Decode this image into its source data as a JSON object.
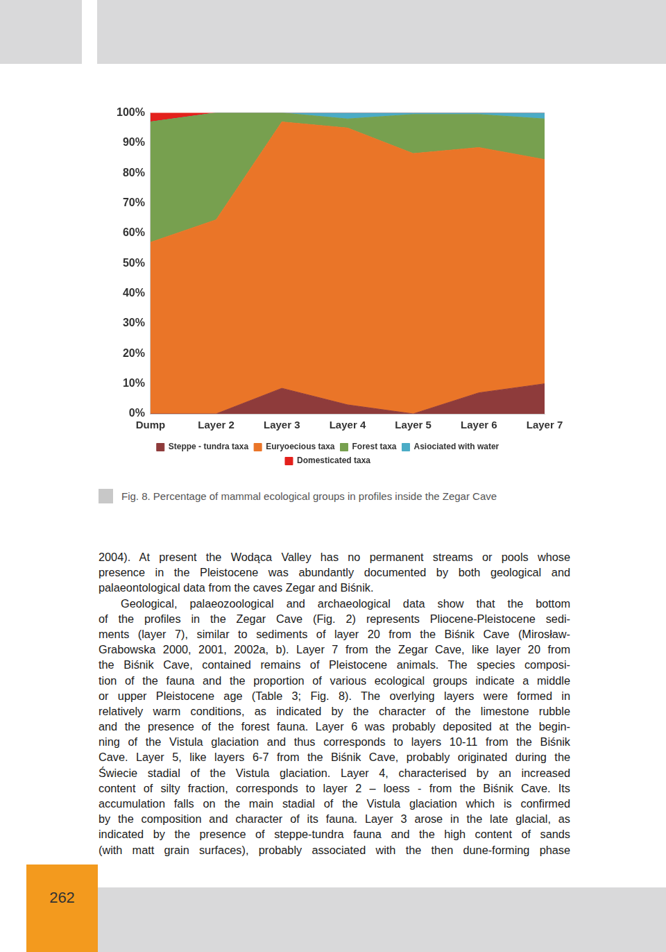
{
  "chart_data": {
    "type": "area",
    "stacked": true,
    "categories": [
      "Dump",
      "Layer 2",
      "Layer 3",
      "Layer 4",
      "Layer 5",
      "Layer 6",
      "Layer 7"
    ],
    "series": [
      {
        "name": "Steppe - tundra taxa",
        "color": "#8e3b3b",
        "values": [
          0,
          0,
          8.5,
          3,
          0,
          7,
          10
        ]
      },
      {
        "name": "Euryoecious taxa",
        "color": "#ea7528",
        "values": [
          57,
          64.5,
          88.5,
          92,
          86.5,
          81.5,
          74.5
        ]
      },
      {
        "name": "Forest taxa",
        "color": "#77a04f",
        "values": [
          40,
          35.5,
          3,
          3,
          13,
          11,
          13.5
        ]
      },
      {
        "name": "Asiociated with water",
        "color": "#4bacc6",
        "values": [
          0,
          0,
          0,
          2,
          0.5,
          0.5,
          2
        ]
      },
      {
        "name": "Domesticated taxa",
        "color": "#e3211c",
        "values": [
          3,
          0,
          0,
          0,
          0,
          0,
          0
        ]
      }
    ],
    "ylim": [
      0,
      100
    ],
    "yticks": [
      {
        "value": 0,
        "label": "0%"
      },
      {
        "value": 10,
        "label": "10%"
      },
      {
        "value": 20,
        "label": "20%"
      },
      {
        "value": 30,
        "label": "30%"
      },
      {
        "value": 40,
        "label": "40%"
      },
      {
        "value": 50,
        "label": "50%"
      },
      {
        "value": 60,
        "label": "60%"
      },
      {
        "value": 70,
        "label": "70%"
      },
      {
        "value": 80,
        "label": "80%"
      },
      {
        "value": 90,
        "label": "90%"
      },
      {
        "value": 100,
        "label": "100%"
      }
    ],
    "grid": false,
    "legend": "bottom"
  },
  "page": {
    "caption": "Fig. 8. Percentage of mammal ecological groups in profiles inside the Zegar Cave",
    "paragraphs": [
      [
        "2004). At present the Wodąca Valley has no permanent streams or pools whose",
        "presence in the Pleistocene was abundantly documented by both geological and",
        "palaeontological data from the caves Zegar and Biśnik."
      ],
      [
        "Geological, palaeozoological and archaeological data show that the bottom",
        "of the profiles in the Zegar Cave (Fig. 2) represents Pliocene-Pleistocene sedi-",
        "ments (layer 7), similar to sediments of layer 20 from the Biśnik Cave (Mirosław-",
        "Grabowska 2000, 2001, 2002a, b). Layer 7 from the Zegar Cave, like layer 20 from",
        "the Biśnik Cave, contained remains of Pleistocene animals. The species composi-",
        "tion of the fauna and the proportion of various ecological groups indicate a middle",
        "or upper Pleistocene age (Table 3; Fig. 8). The overlying layers were formed in",
        "relatively warm conditions, as indicated by the character of the limestone rubble",
        "and the presence of the forest fauna. Layer 6 was probably deposited at the begin-",
        "ning of the Vistula glaciation and thus corresponds to layers 10-11 from the Biśnik",
        "Cave. Layer 5, like layers 6-7 from the Biśnik Cave, probably originated during the",
        "Świecie stadial of the Vistula glaciation. Layer 4, characterised by an increased",
        "content of silty fraction, corresponds to layer 2 – loess - from the Biśnik Cave. Its",
        "accumulation falls on the main stadial of the Vistula glaciation which is confirmed",
        "by the composition and character of its fauna. Layer 3 arose in the late glacial, as",
        "indicated by the presence of steppe-tundra fauna and the high content of sands",
        "(with matt grain surfaces), probably associated with the then dune-forming phase"
      ]
    ],
    "page_number": 262
  }
}
